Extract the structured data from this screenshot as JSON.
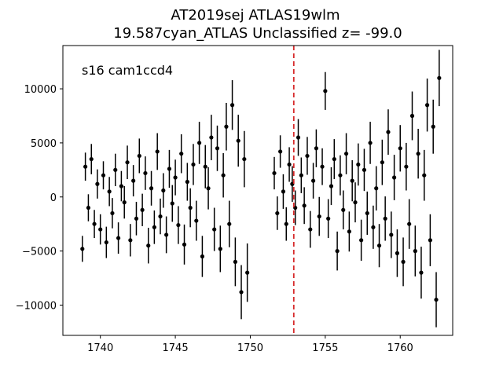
{
  "chart_data": {
    "type": "scatter",
    "title_line1": "AT2019sej  ATLAS19wlm",
    "title_line2": "19.587cyan_ATLAS Unclassified z= -99.0",
    "annotation": "s16 cam1ccd4",
    "xlabel": "",
    "ylabel": "",
    "xlim": [
      1737.5,
      1763.5
    ],
    "ylim": [
      -12800,
      14000
    ],
    "xticks": [
      1740,
      1745,
      1750,
      1755,
      1760
    ],
    "xtick_labels": [
      "1740",
      "1745",
      "1750",
      "1755",
      "1760"
    ],
    "yticks": [
      -10000,
      -5000,
      0,
      5000,
      10000
    ],
    "ytick_labels": [
      "−10000",
      "−5000",
      "0",
      "5000",
      "10000"
    ],
    "vline": {
      "x": 1752.9,
      "color": "#d62728",
      "style": "dashed"
    },
    "marker_color": "#000000",
    "segments": [
      {
        "x": [
          1738.8,
          1739.0,
          1739.2,
          1739.4,
          1739.6,
          1739.8,
          1740.0,
          1740.2,
          1740.4,
          1740.6,
          1740.8,
          1741.0,
          1741.2,
          1741.4,
          1741.6,
          1741.8,
          1742.0,
          1742.2,
          1742.4,
          1742.6,
          1742.8,
          1743.0,
          1743.2,
          1743.4,
          1743.6,
          1743.8,
          1744.0,
          1744.2,
          1744.4,
          1744.6,
          1744.8,
          1745.0,
          1745.2,
          1745.4,
          1745.6,
          1745.8,
          1746.0,
          1746.2,
          1746.4,
          1746.6,
          1746.8,
          1747.0,
          1747.2,
          1747.4,
          1747.6,
          1747.8,
          1748.0,
          1748.2,
          1748.4,
          1748.6,
          1748.8,
          1749.0,
          1749.2,
          1749.4,
          1749.6,
          1749.8
        ],
        "y": [
          -4800,
          2800,
          -1000,
          3500,
          -2500,
          1200,
          -3000,
          2000,
          -4200,
          500,
          -1500,
          2500,
          -3800,
          1000,
          -500,
          3200,
          -4000,
          1500,
          -2000,
          3800,
          -1200,
          2200,
          -4500,
          800,
          -2800,
          4200,
          -1800,
          600,
          -3500,
          2600,
          -600,
          1800,
          -2600,
          4000,
          -4400,
          1400,
          -1000,
          3000,
          -2200,
          5000,
          -5500,
          2800,
          800,
          5500,
          -3000,
          4500,
          -4800,
          2000,
          6500,
          -2500,
          8500,
          -6000,
          5200,
          -8800,
          3500,
          -7000
        ],
        "err": [
          1200,
          1300,
          1250,
          1400,
          1300,
          1350,
          1400,
          1300,
          1450,
          1350,
          1400,
          1500,
          1450,
          1400,
          1500,
          1550,
          1500,
          1450,
          1550,
          1600,
          1500,
          1550,
          1650,
          1600,
          1550,
          1700,
          1650,
          1600,
          1700,
          1750,
          1700,
          1650,
          1750,
          1800,
          1850,
          1750,
          1800,
          1900,
          1850,
          1950,
          1900,
          2000,
          1950,
          2100,
          2000,
          2100,
          2150,
          2050,
          2200,
          2150,
          2300,
          2250,
          2400,
          2500,
          2600,
          2700
        ]
      },
      {
        "x": [
          1751.6,
          1751.8,
          1752.0,
          1752.2,
          1752.4,
          1752.6,
          1752.8,
          1753.0,
          1753.2,
          1753.4,
          1753.6,
          1753.8,
          1754.0,
          1754.2,
          1754.4,
          1754.6,
          1754.8,
          1755.0,
          1755.2,
          1755.4,
          1755.6,
          1755.8,
          1756.0,
          1756.2,
          1756.4,
          1756.6,
          1756.8,
          1757.0,
          1757.2,
          1757.4,
          1757.6,
          1757.8,
          1758.0,
          1758.2,
          1758.4,
          1758.6,
          1758.8,
          1759.0,
          1759.2,
          1759.4,
          1759.6,
          1759.8,
          1760.0,
          1760.2,
          1760.4,
          1760.6,
          1760.8,
          1761.0,
          1761.2,
          1761.4,
          1761.6,
          1761.8,
          1762.0,
          1762.2,
          1762.4,
          1762.6
        ],
        "y": [
          2200,
          -1500,
          4200,
          500,
          -2500,
          3000,
          1200,
          -1000,
          5500,
          2000,
          -800,
          3800,
          -3000,
          1500,
          4500,
          -1800,
          2800,
          9800,
          -2000,
          1000,
          3500,
          -5000,
          2000,
          -1200,
          4000,
          -3200,
          1500,
          -500,
          3000,
          -4000,
          2500,
          -1500,
          5000,
          -2800,
          800,
          -4500,
          3200,
          -2000,
          6000,
          -3500,
          1800,
          -5200,
          4500,
          -6000,
          2800,
          -2500,
          7500,
          -5000,
          4000,
          -7000,
          2000,
          8500,
          -4000,
          6500,
          -9500,
          11000
        ],
        "err": [
          1500,
          1550,
          1500,
          1600,
          1550,
          1600,
          1650,
          1600,
          1700,
          1650,
          1700,
          1750,
          1700,
          1650,
          1750,
          1800,
          1700,
          1750,
          1800,
          1750,
          1850,
          1800,
          1850,
          1800,
          1900,
          1850,
          1900,
          1850,
          1950,
          1900,
          1950,
          2000,
          1950,
          2000,
          2050,
          2000,
          2100,
          2050,
          2100,
          2150,
          2100,
          2200,
          2150,
          2250,
          2200,
          2300,
          2250,
          2350,
          2300,
          2400,
          2350,
          2450,
          2400,
          2500,
          2550,
          2600
        ]
      }
    ]
  }
}
